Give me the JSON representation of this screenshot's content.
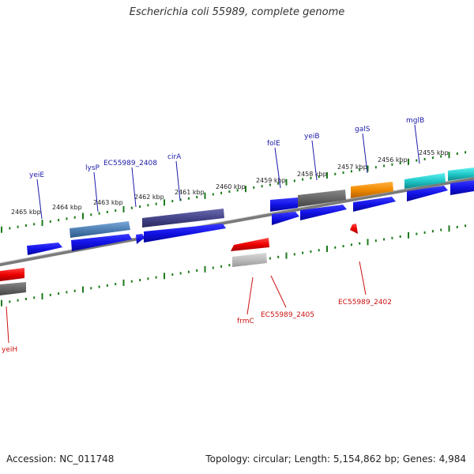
{
  "title": "Escherichia coli 55989, complete genome",
  "footer": {
    "accession": "Accession: NC_011748",
    "summary": "Topology: circular; Length: 5,154,862 bp; Genes: 4,984"
  },
  "colors": {
    "forward_label": "#1a1aa8",
    "reverse_label": "#cc1111",
    "axis": "#8a8a8a",
    "tick": "#1c7a1c"
  },
  "scale_labels": [
    {
      "text": "2465 kbp"
    },
    {
      "text": "2464 kbp"
    },
    {
      "text": "2463 kbp"
    },
    {
      "text": "2462 kbp"
    },
    {
      "text": "2461 kbp"
    },
    {
      "text": "2460 kbp"
    },
    {
      "text": "2459 kbp"
    },
    {
      "text": "2458 kbp"
    },
    {
      "text": "2457 kbp"
    },
    {
      "text": "2456 kbp"
    },
    {
      "text": "2455 kbp"
    }
  ],
  "forward_gene_labels": [
    {
      "text": "yeiE"
    },
    {
      "text": "lysP"
    },
    {
      "text": "EC55989_2408"
    },
    {
      "text": "cirA"
    },
    {
      "text": "folE"
    },
    {
      "text": "yeiB"
    },
    {
      "text": "galS"
    },
    {
      "text": "mglB"
    }
  ],
  "reverse_gene_labels": [
    {
      "text": "yeiH"
    },
    {
      "text": "frmC"
    },
    {
      "text": "EC55989_2405"
    },
    {
      "text": "EC55989_2402"
    }
  ]
}
